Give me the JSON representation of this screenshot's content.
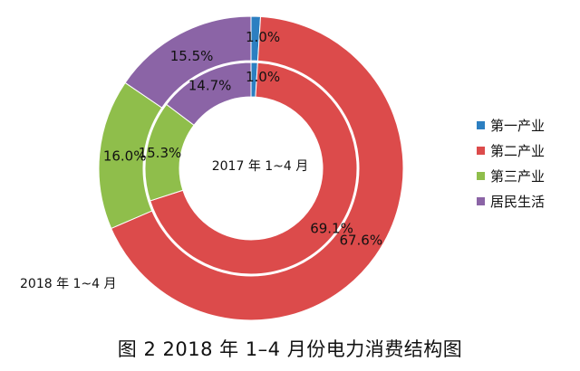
{
  "chart_data": {
    "type": "donut",
    "title": "图 2  2018 年 1–4 月份电力消费结构图",
    "categories": [
      "第一产业",
      "第二产业",
      "第三产业",
      "居民生活"
    ],
    "colors": [
      "#2c7fc1",
      "#dc4b4b",
      "#8fbe4b",
      "#8b64a6"
    ],
    "series": [
      {
        "name": "2018 年 1~4 月",
        "ring": "outer",
        "values": [
          1.0,
          67.6,
          16.0,
          15.5
        ],
        "labels": [
          "1.0%",
          "67.6%",
          "16.0%",
          "15.5%"
        ]
      },
      {
        "name": "2017 年 1~4 月",
        "ring": "inner",
        "values": [
          1.0,
          69.1,
          15.3,
          14.7
        ],
        "labels": [
          "1.0%",
          "69.1%",
          "15.3%",
          "14.7%"
        ]
      }
    ]
  },
  "caption": "图 2  2018 年 1–4 月份电力消费结构图"
}
